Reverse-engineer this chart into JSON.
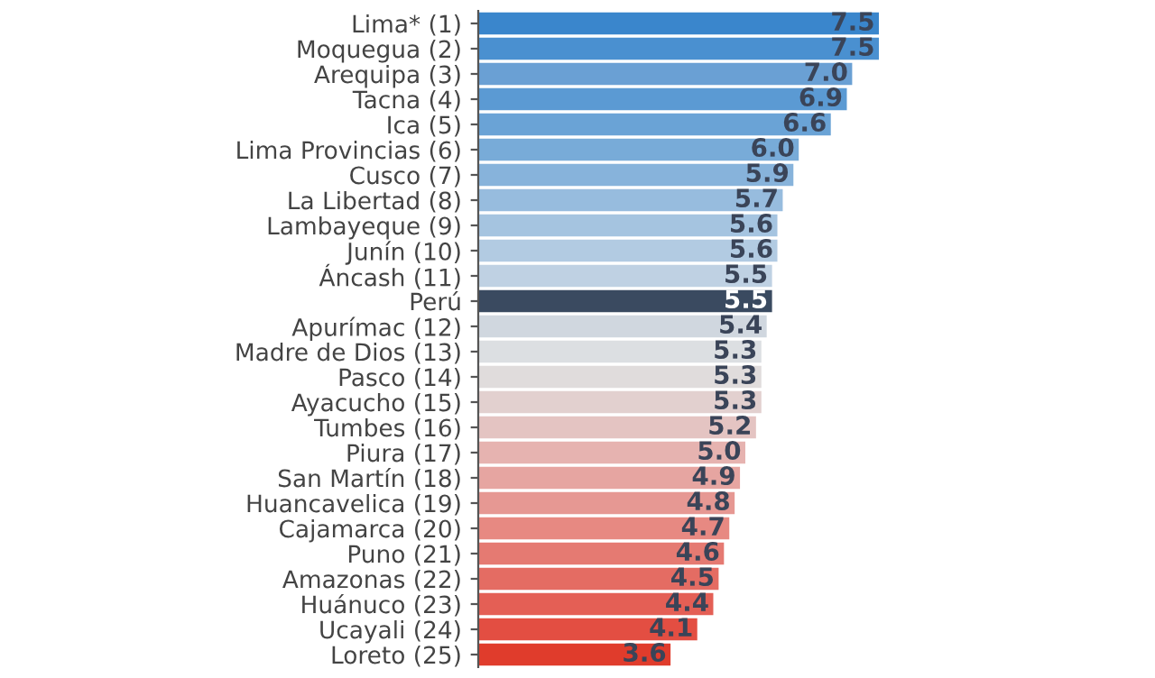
{
  "chart_data": {
    "type": "bar",
    "orientation": "horizontal",
    "value_labels": [
      "7.5",
      "7.5",
      "7.0",
      "6.9",
      "6.6",
      "6.0",
      "5.9",
      "5.7",
      "5.6",
      "5.6",
      "5.5",
      "5.5",
      "5.4",
      "5.3",
      "5.3",
      "5.3",
      "5.2",
      "5.0",
      "4.9",
      "4.8",
      "4.7",
      "4.6",
      "4.5",
      "4.4",
      "4.1",
      "3.6"
    ],
    "grid": false,
    "legend": false,
    "categories": [
      "Lima* (1)",
      "Moquegua (2)",
      "Arequipa (3)",
      "Tacna (4)",
      "Ica (5)",
      "Lima Provincias (6)",
      "Cusco (7)",
      "La Libertad (8)",
      "Lambayeque (9)",
      "Junín (10)",
      "Áncash (11)",
      "Perú",
      "Apurímac (12)",
      "Madre de Dios (13)",
      "Pasco (14)",
      "Ayacucho (15)",
      "Tumbes (16)",
      "Piura (17)",
      "San Martín (18)",
      "Huancavelica (19)",
      "Cajamarca (20)",
      "Puno (21)",
      "Amazonas (22)",
      "Huánuco (23)",
      "Ucayali (24)",
      "Loreto (25)"
    ],
    "values": [
      7.5,
      7.5,
      7.0,
      6.9,
      6.6,
      6.0,
      5.9,
      5.7,
      5.6,
      5.6,
      5.5,
      5.5,
      5.4,
      5.3,
      5.3,
      5.3,
      5.2,
      5.0,
      4.9,
      4.8,
      4.7,
      4.6,
      4.5,
      4.4,
      4.1,
      3.6
    ],
    "colors": [
      "#3a86cc",
      "#4a90d0",
      "#6aa0d4",
      "#5b9ad3",
      "#6aa3d6",
      "#78abd8",
      "#87b3db",
      "#97bcde",
      "#a5c4e0",
      "#b2cbe2",
      "#bfd1e3",
      "#3a4a60",
      "#d0d7df",
      "#dcdfe2",
      "#e0dcdc",
      "#e2d0cf",
      "#e4c4c2",
      "#e6b3b0",
      "#e6a5a1",
      "#e69893",
      "#e78982",
      "#e57a72",
      "#e46c63",
      "#e45f55",
      "#e34e42",
      "#e03c2c"
    ]
  }
}
